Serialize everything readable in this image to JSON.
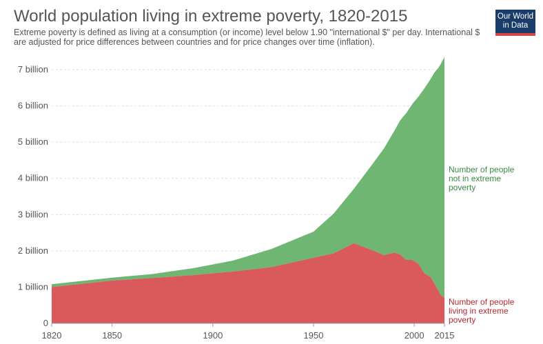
{
  "header": {
    "title": "World population living in extreme poverty, 1820-2015",
    "subtitle": "Extreme poverty is defined as living at a consumption (or income) level below 1.90 \"international $\" per day. International $ are adjusted for price differences between countries and for price changes over time (inflation).",
    "logo_line1": "Our World",
    "logo_line2": "in Data"
  },
  "colors": {
    "poor": "#d9595c",
    "not_poor": "#6fb673",
    "poor_label": "#b5292e",
    "not_poor_label": "#3a8a3e"
  },
  "chart_data": {
    "type": "area",
    "stacked": true,
    "title": "World population living in extreme poverty, 1820-2015",
    "xlim": [
      1820,
      2015
    ],
    "ylim": [
      0,
      7400000000
    ],
    "grid": true,
    "x_ticks": [
      1820,
      1850,
      1900,
      1950,
      2000,
      2015
    ],
    "y_ticks": [
      {
        "value": 0,
        "label": "0"
      },
      {
        "value": 1000000000,
        "label": "1 billion"
      },
      {
        "value": 2000000000,
        "label": "2 billion"
      },
      {
        "value": 3000000000,
        "label": "3 billion"
      },
      {
        "value": 4000000000,
        "label": "4 billion"
      },
      {
        "value": 5000000000,
        "label": "5 billion"
      },
      {
        "value": 6000000000,
        "label": "6 billion"
      },
      {
        "value": 7000000000,
        "label": "7 billion"
      }
    ],
    "x": [
      1820,
      1850,
      1870,
      1890,
      1910,
      1929,
      1950,
      1960,
      1970,
      1980,
      1985,
      1990,
      1993,
      1996,
      1999,
      2002,
      2005,
      2008,
      2010,
      2012,
      2013,
      2015
    ],
    "series": [
      {
        "name": "Number of people living in extreme poverty",
        "label_lines": [
          "Number of people",
          "living in extreme",
          "poverty"
        ],
        "values": [
          1000000000,
          1180000000,
          1250000000,
          1330000000,
          1430000000,
          1550000000,
          1810000000,
          1930000000,
          2210000000,
          2000000000,
          1880000000,
          1950000000,
          1900000000,
          1750000000,
          1750000000,
          1650000000,
          1380000000,
          1280000000,
          1100000000,
          900000000,
          790000000,
          700000000
        ]
      },
      {
        "name": "Number of people not in extreme poverty",
        "label_lines": [
          "Number of people",
          "not in extreme",
          "poverty"
        ],
        "values": [
          80000000,
          80000000,
          110000000,
          190000000,
          300000000,
          500000000,
          720000000,
          1100000000,
          1500000000,
          2450000000,
          2950000000,
          3350000000,
          3700000000,
          4050000000,
          4300000000,
          4600000000,
          5100000000,
          5450000000,
          5820000000,
          6150000000,
          6350000000,
          6650000000
        ]
      }
    ]
  }
}
